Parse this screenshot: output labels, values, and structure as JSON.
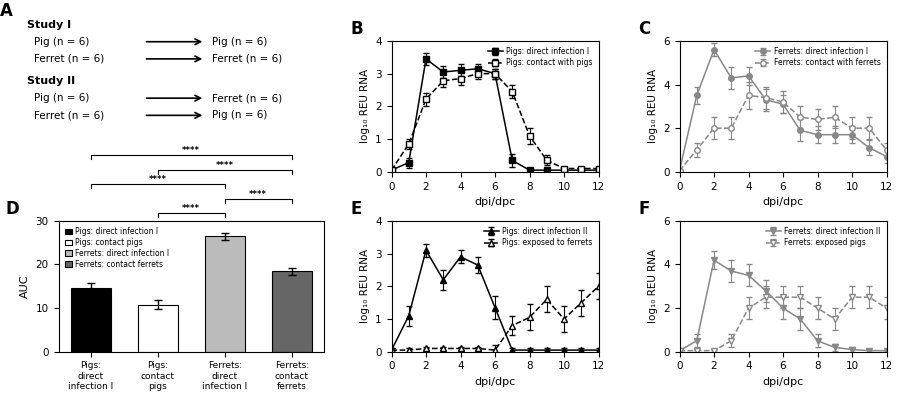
{
  "chart_data": [
    {
      "type": "diagram",
      "title": "A",
      "groups": [
        {
          "label": "Study I",
          "rows": [
            [
              "Pig (n = 6)",
              "Pig (n = 6)"
            ],
            [
              "Ferret (n = 6)",
              "Ferret (n = 6)"
            ]
          ]
        },
        {
          "label": "Study II",
          "rows": [
            [
              "Pig (n = 6)",
              "Ferret (n = 6)"
            ],
            [
              "Ferret (n = 6)",
              "Pig (n = 6)"
            ]
          ]
        }
      ]
    },
    {
      "type": "line",
      "title": "B",
      "xlabel": "dpi/dpc",
      "ylabel": "log₁₀ REU RNA",
      "xlim": [
        0,
        12
      ],
      "ylim": [
        0,
        4
      ],
      "xticks": [
        0,
        2,
        4,
        6,
        8,
        10,
        12
      ],
      "yticks": [
        0,
        1,
        2,
        3,
        4
      ],
      "legend": "upper right",
      "x": [
        0,
        1,
        2,
        3,
        4,
        5,
        6,
        7,
        8,
        9,
        10,
        11,
        12
      ],
      "series": [
        {
          "name": "Pigs: direct infection I",
          "color": "black",
          "line_style": "solid",
          "marker": "filled-square",
          "values": [
            0.05,
            0.28,
            3.45,
            3.05,
            3.1,
            3.15,
            3.0,
            0.35,
            0.05,
            0.05,
            0.05,
            0.05,
            0.05
          ],
          "errors": [
            0.05,
            0.15,
            0.18,
            0.18,
            0.18,
            0.15,
            0.15,
            0.2,
            0.05,
            0.05,
            0.05,
            0.05,
            0.05
          ]
        },
        {
          "name": "Pigs: contact with pigs",
          "color": "black",
          "line_style": "dashed",
          "marker": "hollow-square",
          "values": [
            0.05,
            0.85,
            2.22,
            2.78,
            2.85,
            3.0,
            3.0,
            2.45,
            1.1,
            0.35,
            0.1,
            0.1,
            0.1
          ],
          "errors": [
            0.05,
            0.15,
            0.2,
            0.2,
            0.2,
            0.15,
            0.15,
            0.2,
            0.25,
            0.15,
            0.05,
            0.05,
            0.05
          ]
        }
      ]
    },
    {
      "type": "line",
      "title": "C",
      "xlabel": "dpi/dpc",
      "ylabel": "log₁₀ REU RNA",
      "xlim": [
        0,
        12
      ],
      "ylim": [
        0,
        6
      ],
      "xticks": [
        0,
        2,
        4,
        6,
        8,
        10,
        12
      ],
      "yticks": [
        0,
        2,
        4,
        6
      ],
      "legend": "upper right",
      "x": [
        0,
        1,
        2,
        3,
        4,
        5,
        6,
        7,
        8,
        9,
        10,
        11,
        12
      ],
      "series": [
        {
          "name": "Ferrets: direct infection I",
          "color": "#888888",
          "line_style": "solid",
          "marker": "filled-circle",
          "values": [
            0.05,
            3.5,
            5.6,
            4.3,
            4.4,
            3.3,
            3.1,
            1.9,
            1.7,
            1.7,
            1.7,
            1.1,
            0.7
          ],
          "errors": [
            0.05,
            0.4,
            0.3,
            0.5,
            0.4,
            0.5,
            0.4,
            0.5,
            0.4,
            0.4,
            0.4,
            0.35,
            0.3
          ]
        },
        {
          "name": "Ferrets: contact with ferrets",
          "color": "#888888",
          "line_style": "dashed",
          "marker": "hollow-circle",
          "values": [
            0.05,
            1.0,
            2.0,
            2.0,
            3.5,
            3.4,
            3.2,
            2.5,
            2.4,
            2.5,
            2.0,
            2.0,
            1.0
          ],
          "errors": [
            0.05,
            0.3,
            0.5,
            0.5,
            0.6,
            0.5,
            0.5,
            0.5,
            0.5,
            0.5,
            0.5,
            0.5,
            0.3
          ]
        }
      ]
    },
    {
      "type": "bar",
      "title": "D",
      "ylabel": "AUC",
      "categories": [
        "Pigs:\ndirect\ninfection I",
        "Pigs:\ncontact\npigs",
        "Ferrets:\ndirect\ninfection I",
        "Ferrets:\ncontact\nferrets"
      ],
      "values": [
        14.5,
        10.8,
        26.5,
        18.5
      ],
      "errors": [
        1.2,
        1.0,
        0.8,
        0.8
      ],
      "colors": [
        "black",
        "white",
        "#bbbbbb",
        "#666666"
      ],
      "ylim": [
        0,
        30
      ],
      "yticks": [
        0,
        10,
        20,
        30
      ],
      "legend": "upper left",
      "legend_items": [
        {
          "name": "Pigs: direct infection I",
          "color": "black"
        },
        {
          "name": "Pigs: contact pigs",
          "color": "white"
        },
        {
          "name": "Ferrets: direct infection I",
          "color": "#bbbbbb"
        },
        {
          "name": "Ferrets: contact ferrets",
          "color": "#666666"
        }
      ],
      "annotations": [
        {
          "from": 1,
          "to": 2,
          "label": "****"
        },
        {
          "from": 2,
          "to": 3,
          "label": "****"
        },
        {
          "from": 0,
          "to": 2,
          "label": "****"
        },
        {
          "from": 1,
          "to": 3,
          "label": "****"
        },
        {
          "from": 0,
          "to": 3,
          "label": "****"
        }
      ]
    },
    {
      "type": "line",
      "title": "E",
      "xlabel": "dpi/dpc",
      "ylabel": "log₁₀ REU RNA",
      "xlim": [
        0,
        12
      ],
      "ylim": [
        0,
        4
      ],
      "xticks": [
        0,
        2,
        4,
        6,
        8,
        10,
        12
      ],
      "yticks": [
        0,
        1,
        2,
        3,
        4
      ],
      "legend": "upper right",
      "x": [
        0,
        1,
        2,
        3,
        4,
        5,
        6,
        7,
        8,
        9,
        10,
        11,
        12
      ],
      "series": [
        {
          "name": "Pigs: direct infection II",
          "color": "black",
          "line_style": "solid",
          "marker": "filled-triangle-up",
          "values": [
            0.05,
            1.1,
            3.1,
            2.2,
            2.9,
            2.65,
            1.35,
            0.05,
            0.05,
            0.05,
            0.05,
            0.05,
            0.05
          ],
          "errors": [
            0.05,
            0.3,
            0.2,
            0.3,
            0.2,
            0.25,
            0.35,
            0.05,
            0.05,
            0.05,
            0.05,
            0.05,
            0.05
          ]
        },
        {
          "name": "Pigs: exposed to ferrets",
          "color": "black",
          "line_style": "dashed",
          "marker": "hollow-triangle-up",
          "values": [
            0.05,
            0.05,
            0.1,
            0.1,
            0.1,
            0.1,
            0.05,
            0.8,
            1.05,
            1.6,
            1.0,
            1.5,
            2.0
          ],
          "errors": [
            0.05,
            0.05,
            0.05,
            0.05,
            0.05,
            0.05,
            0.15,
            0.3,
            0.4,
            0.4,
            0.4,
            0.4,
            0.4
          ]
        }
      ]
    },
    {
      "type": "line",
      "title": "F",
      "xlabel": "dpi/dpc",
      "ylabel": "log₁₀ REU RNA",
      "xlim": [
        0,
        12
      ],
      "ylim": [
        0,
        6
      ],
      "xticks": [
        0,
        2,
        4,
        6,
        8,
        10,
        12
      ],
      "yticks": [
        0,
        2,
        4,
        6
      ],
      "legend": "upper right",
      "x": [
        0,
        1,
        2,
        3,
        4,
        5,
        6,
        7,
        8,
        9,
        10,
        11,
        12
      ],
      "series": [
        {
          "name": "Ferrets: direct infection II",
          "color": "#888888",
          "line_style": "solid",
          "marker": "filled-triangle-down",
          "values": [
            0.05,
            0.5,
            4.2,
            3.7,
            3.5,
            2.8,
            2.0,
            1.5,
            0.5,
            0.2,
            0.1,
            0.05,
            0.05
          ],
          "errors": [
            0.05,
            0.3,
            0.4,
            0.5,
            0.5,
            0.5,
            0.5,
            0.5,
            0.3,
            0.15,
            0.1,
            0.05,
            0.05
          ]
        },
        {
          "name": "Ferrets: exposed pigs",
          "color": "#888888",
          "line_style": "dashed",
          "marker": "hollow-triangle-down",
          "values": [
            0.05,
            0.05,
            0.05,
            0.5,
            2.0,
            2.5,
            2.5,
            2.5,
            2.0,
            1.5,
            2.5,
            2.5,
            2.0
          ],
          "errors": [
            0.05,
            0.05,
            0.05,
            0.3,
            0.5,
            0.5,
            0.5,
            0.5,
            0.5,
            0.5,
            0.5,
            0.5,
            0.5
          ]
        }
      ]
    }
  ]
}
